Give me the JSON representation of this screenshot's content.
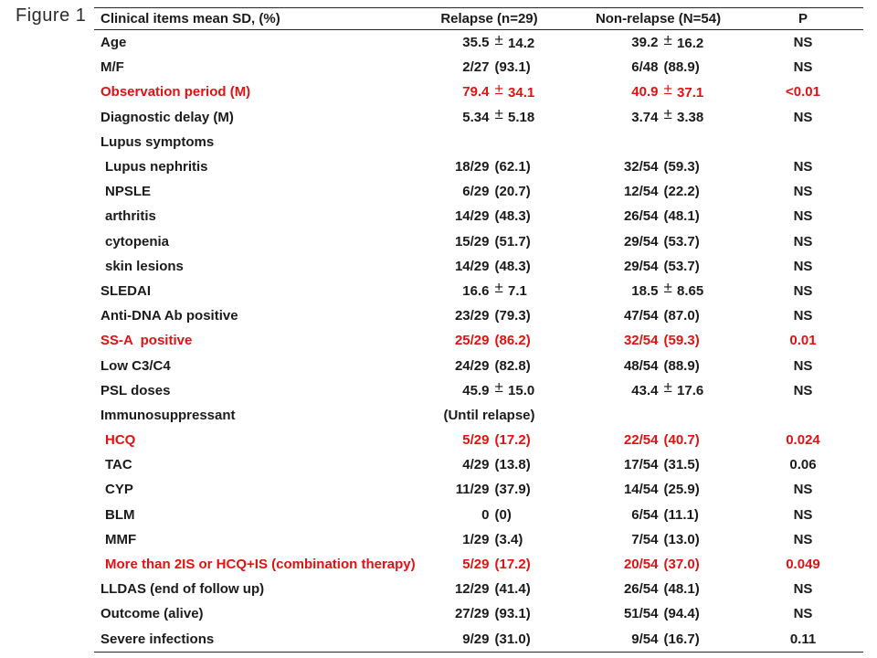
{
  "figure_label": "Figure 1",
  "pm_symbol": "±",
  "colors": {
    "accent_red": "#e01212",
    "text": "#1b1b1b",
    "line": "#262626",
    "background": "#ffffff"
  },
  "chart_data": {
    "type": "table",
    "title": "Figure 1",
    "columns": [
      "Clinical items mean SD, (%)",
      "Relapse (n=29)",
      "Non-relapse (N=54)",
      "P"
    ],
    "rows": [
      {
        "label": "Age",
        "indent": false,
        "red": false,
        "relapse": {
          "t": "pm",
          "a": "35.5",
          "b": "14.2"
        },
        "nonrelapse": {
          "t": "pm",
          "a": "39.2",
          "b": "16.2"
        },
        "p": "NS"
      },
      {
        "label": "M/F",
        "indent": false,
        "red": false,
        "relapse": {
          "t": "fr",
          "a": "2/27",
          "b": "(93.1)"
        },
        "nonrelapse": {
          "t": "fr",
          "a": "6/48",
          "b": "(88.9)"
        },
        "p": "NS"
      },
      {
        "label": "Observation period (M)",
        "indent": false,
        "red": true,
        "relapse": {
          "t": "pm",
          "a": "79.4",
          "b": "34.1"
        },
        "nonrelapse": {
          "t": "pm",
          "a": "40.9",
          "b": "37.1"
        },
        "p": "<0.01"
      },
      {
        "label": "Diagnostic delay (M)",
        "indent": false,
        "red": false,
        "relapse": {
          "t": "pm",
          "a": "5.34",
          "b": "5.18"
        },
        "nonrelapse": {
          "t": "pm",
          "a": "3.74",
          "b": "3.38"
        },
        "p": "NS"
      },
      {
        "label": "Lupus symptoms",
        "indent": false,
        "red": false,
        "relapse": null,
        "nonrelapse": null,
        "p": ""
      },
      {
        "label": "Lupus nephritis",
        "indent": true,
        "red": false,
        "relapse": {
          "t": "fr",
          "a": "18/29",
          "b": "(62.1)"
        },
        "nonrelapse": {
          "t": "fr",
          "a": "32/54",
          "b": "(59.3)"
        },
        "p": "NS"
      },
      {
        "label": "NPSLE",
        "indent": true,
        "red": false,
        "relapse": {
          "t": "fr",
          "a": "6/29",
          "b": "(20.7)"
        },
        "nonrelapse": {
          "t": "fr",
          "a": "12/54",
          "b": "(22.2)"
        },
        "p": "NS"
      },
      {
        "label": "arthritis",
        "indent": true,
        "red": false,
        "relapse": {
          "t": "fr",
          "a": "14/29",
          "b": "(48.3)"
        },
        "nonrelapse": {
          "t": "fr",
          "a": "26/54",
          "b": "(48.1)"
        },
        "p": "NS"
      },
      {
        "label": "cytopenia",
        "indent": true,
        "red": false,
        "relapse": {
          "t": "fr",
          "a": "15/29",
          "b": "(51.7)"
        },
        "nonrelapse": {
          "t": "fr",
          "a": "29/54",
          "b": "(53.7)"
        },
        "p": "NS"
      },
      {
        "label": "skin lesions",
        "indent": true,
        "red": false,
        "relapse": {
          "t": "fr",
          "a": "14/29",
          "b": "(48.3)"
        },
        "nonrelapse": {
          "t": "fr",
          "a": "29/54",
          "b": "(53.7)"
        },
        "p": "NS"
      },
      {
        "label": "SLEDAI",
        "indent": false,
        "red": false,
        "relapse": {
          "t": "pm",
          "a": "16.6",
          "b": "7.1"
        },
        "nonrelapse": {
          "t": "pm",
          "a": "18.5",
          "b": "8.65"
        },
        "p": "NS"
      },
      {
        "label": "Anti-DNA Ab positive",
        "indent": false,
        "red": false,
        "relapse": {
          "t": "fr",
          "a": "23/29",
          "b": "(79.3)"
        },
        "nonrelapse": {
          "t": "fr",
          "a": "47/54",
          "b": "(87.0)"
        },
        "p": "NS"
      },
      {
        "label": "SS-A  positive",
        "indent": false,
        "red": true,
        "relapse": {
          "t": "fr",
          "a": "25/29",
          "b": "(86.2)"
        },
        "nonrelapse": {
          "t": "fr",
          "a": "32/54",
          "b": "(59.3)"
        },
        "p": "0.01"
      },
      {
        "label": "Low C3/C4",
        "indent": false,
        "red": false,
        "relapse": {
          "t": "fr",
          "a": "24/29",
          "b": "(82.8)"
        },
        "nonrelapse": {
          "t": "fr",
          "a": "48/54",
          "b": "(88.9)"
        },
        "p": "NS"
      },
      {
        "label": "PSL doses",
        "indent": false,
        "red": false,
        "relapse": {
          "t": "pm",
          "a": "45.9",
          "b": "15.0"
        },
        "nonrelapse": {
          "t": "pm",
          "a": "43.4",
          "b": "17.6"
        },
        "p": "NS"
      },
      {
        "label": "Immunosuppressant",
        "indent": false,
        "red": false,
        "relapse": {
          "t": "txt",
          "a": "(Until relapse)"
        },
        "nonrelapse": null,
        "p": ""
      },
      {
        "label": "HCQ",
        "indent": true,
        "red": true,
        "relapse": {
          "t": "fr",
          "a": "5/29",
          "b": "(17.2)"
        },
        "nonrelapse": {
          "t": "fr",
          "a": "22/54",
          "b": "(40.7)"
        },
        "p": "0.024"
      },
      {
        "label": "TAC",
        "indent": true,
        "red": false,
        "relapse": {
          "t": "fr",
          "a": "4/29",
          "b": "(13.8)"
        },
        "nonrelapse": {
          "t": "fr",
          "a": "17/54",
          "b": "(31.5)"
        },
        "p": "0.06"
      },
      {
        "label": "CYP",
        "indent": true,
        "red": false,
        "relapse": {
          "t": "fr",
          "a": "11/29",
          "b": "(37.9)"
        },
        "nonrelapse": {
          "t": "fr",
          "a": "14/54",
          "b": "(25.9)"
        },
        "p": "NS"
      },
      {
        "label": "BLM",
        "indent": true,
        "red": false,
        "relapse": {
          "t": "fr",
          "a": "0",
          "b": "(0)"
        },
        "nonrelapse": {
          "t": "fr",
          "a": "6/54",
          "b": "(11.1)"
        },
        "p": "NS"
      },
      {
        "label": "MMF",
        "indent": true,
        "red": false,
        "relapse": {
          "t": "fr",
          "a": "1/29",
          "b": "(3.4)"
        },
        "nonrelapse": {
          "t": "fr",
          "a": "7/54",
          "b": "(13.0)"
        },
        "p": "NS"
      },
      {
        "label": "More than 2IS or HCQ+IS (combination therapy)",
        "indent": true,
        "red": true,
        "relapse": {
          "t": "fr",
          "a": "5/29",
          "b": "(17.2)"
        },
        "nonrelapse": {
          "t": "fr",
          "a": "20/54",
          "b": "(37.0)"
        },
        "p": "0.049"
      },
      {
        "label": "LLDAS (end of follow up)",
        "indent": false,
        "red": false,
        "relapse": {
          "t": "fr",
          "a": "12/29",
          "b": "(41.4)"
        },
        "nonrelapse": {
          "t": "fr",
          "a": "26/54",
          "b": "(48.1)"
        },
        "p": "NS"
      },
      {
        "label": "Outcome (alive)",
        "indent": false,
        "red": false,
        "relapse": {
          "t": "fr",
          "a": "27/29",
          "b": "(93.1)"
        },
        "nonrelapse": {
          "t": "fr",
          "a": "51/54",
          "b": "(94.4)"
        },
        "p": "NS"
      },
      {
        "label": "Severe infections",
        "indent": false,
        "red": false,
        "relapse": {
          "t": "fr",
          "a": "9/29",
          "b": "(31.0)"
        },
        "nonrelapse": {
          "t": "fr",
          "a": "9/54",
          "b": "(16.7)"
        },
        "p": "0.11"
      }
    ]
  }
}
